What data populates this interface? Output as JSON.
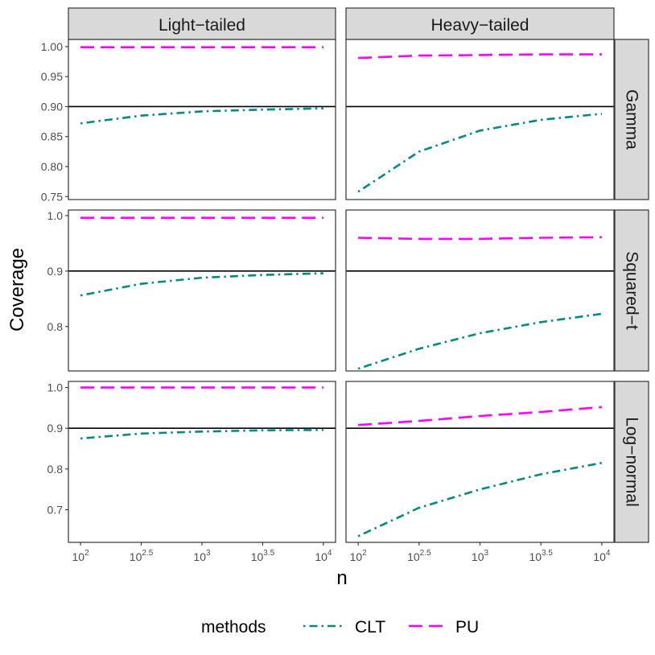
{
  "chart_data": {
    "type": "line",
    "facet_columns": [
      "Light−tailed",
      "Heavy−tailed"
    ],
    "facet_rows": [
      "Gamma",
      "Squared−t",
      "Log−normal"
    ],
    "xlabel": "n",
    "ylabel": "Coverage",
    "x_scale": "log10",
    "x": [
      2,
      2.5,
      3,
      3.5,
      4
    ],
    "x_tick_values": [
      2,
      2.5,
      3,
      3.5,
      4
    ],
    "x_tick_base": "10",
    "x_tick_exponents": [
      "2",
      "2.5",
      "3",
      "3.5",
      "4"
    ],
    "xlim": [
      1.9,
      4.1
    ],
    "reference_line": 0.9,
    "row_scales": [
      {
        "ylim": [
          0.745,
          1.012
        ],
        "ticks": [
          0.75,
          0.8,
          0.85,
          0.9,
          0.95,
          1.0
        ],
        "tick_labels": [
          "0.75",
          "0.80",
          "0.85",
          "0.90",
          "0.95",
          "1.00"
        ]
      },
      {
        "ylim": [
          0.72,
          1.01
        ],
        "ticks": [
          0.8,
          0.9,
          1.0
        ],
        "tick_labels": [
          "0.8",
          "0.9",
          "1.0"
        ]
      },
      {
        "ylim": [
          0.62,
          1.015
        ],
        "ticks": [
          0.7,
          0.8,
          0.9,
          1.0
        ],
        "tick_labels": [
          "0.7",
          "0.8",
          "0.9",
          "1.0"
        ]
      }
    ],
    "panels": [
      {
        "row": "Gamma",
        "col": "Light−tailed",
        "series": [
          {
            "name": "CLT",
            "values": [
              0.872,
              0.885,
              0.892,
              0.895,
              0.897
            ]
          },
          {
            "name": "PU",
            "values": [
              0.999,
              0.999,
              0.999,
              0.999,
              0.999
            ]
          }
        ]
      },
      {
        "row": "Gamma",
        "col": "Heavy−tailed",
        "series": [
          {
            "name": "CLT",
            "values": [
              0.758,
              0.825,
              0.86,
              0.878,
              0.888
            ]
          },
          {
            "name": "PU",
            "values": [
              0.981,
              0.985,
              0.986,
              0.987,
              0.987
            ]
          }
        ]
      },
      {
        "row": "Squared−t",
        "col": "Light−tailed",
        "series": [
          {
            "name": "CLT",
            "values": [
              0.856,
              0.877,
              0.888,
              0.893,
              0.896
            ]
          },
          {
            "name": "PU",
            "values": [
              0.996,
              0.996,
              0.996,
              0.996,
              0.996
            ]
          }
        ]
      },
      {
        "row": "Squared−t",
        "col": "Heavy−tailed",
        "series": [
          {
            "name": "CLT",
            "values": [
              0.724,
              0.76,
              0.788,
              0.808,
              0.823
            ]
          },
          {
            "name": "PU",
            "values": [
              0.96,
              0.958,
              0.958,
              0.96,
              0.961
            ]
          }
        ]
      },
      {
        "row": "Log−normal",
        "col": "Light−tailed",
        "series": [
          {
            "name": "CLT",
            "values": [
              0.875,
              0.887,
              0.892,
              0.895,
              0.896
            ]
          },
          {
            "name": "PU",
            "values": [
              1.0,
              1.0,
              1.0,
              1.0,
              1.0
            ]
          }
        ]
      },
      {
        "row": "Log−normal",
        "col": "Heavy−tailed",
        "series": [
          {
            "name": "CLT",
            "values": [
              0.635,
              0.705,
              0.75,
              0.787,
              0.815
            ]
          },
          {
            "name": "PU",
            "values": [
              0.908,
              0.918,
              0.93,
              0.94,
              0.952
            ]
          }
        ]
      }
    ],
    "legend": {
      "title": "methods",
      "placement": "bottom",
      "items": [
        {
          "name": "CLT",
          "color": "#008b8b",
          "dash": "dotdash"
        },
        {
          "name": "PU",
          "color": "#ff00ff",
          "dash": "longdash"
        }
      ]
    },
    "colors": {
      "CLT": "#008b8b",
      "PU": "#ff00ff",
      "reference": "#000000",
      "strip": "#d9d9d9"
    }
  }
}
